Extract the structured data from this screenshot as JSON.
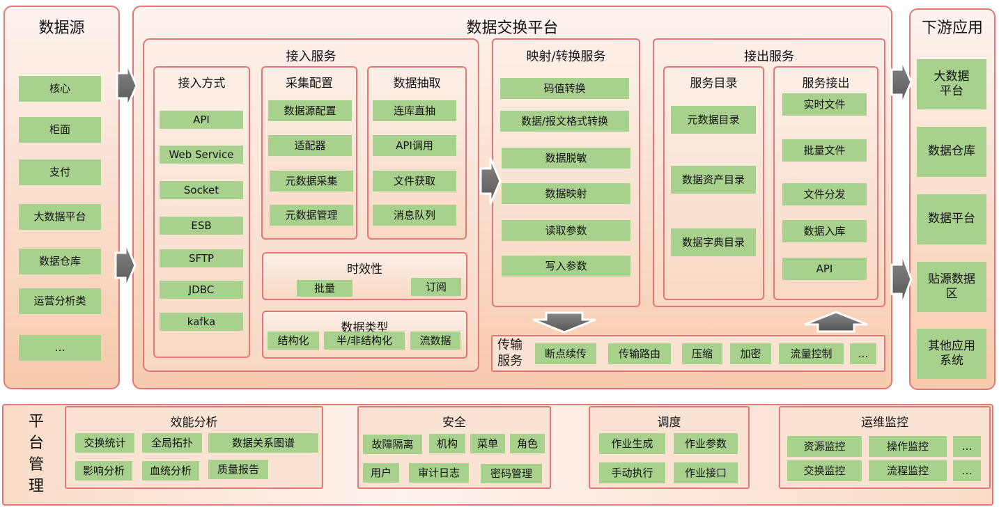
{
  "colors": {
    "border": "#e87575",
    "green": "#a9d18e",
    "arrow": "#666666"
  },
  "source": {
    "title": "数据源",
    "items": [
      "核心",
      "柜面",
      "支付",
      "大数据平台",
      "数据仓库",
      "运营分析类",
      "…"
    ]
  },
  "platform": {
    "title": "数据交换平台",
    "ingest": {
      "title": "接入服务",
      "methods": {
        "title": "接入方式",
        "items": [
          "API",
          "Web Service",
          "Socket",
          "ESB",
          "SFTP",
          "JDBC",
          "kafka"
        ]
      },
      "collect": {
        "title": "采集配置",
        "items": [
          "数据源配置",
          "适配器",
          "元数据采集",
          "元数据管理"
        ]
      },
      "extract": {
        "title": "数据抽取",
        "items": [
          "连库直抽",
          "API调用",
          "文件获取",
          "消息队列"
        ]
      },
      "timeliness": {
        "title": "时效性",
        "items": [
          "批量",
          "订阅"
        ]
      },
      "datatype": {
        "title": "数据类型",
        "items": [
          "结构化",
          "半/非结构化",
          "流数据"
        ]
      }
    },
    "mapping": {
      "title": "映射/转换服务",
      "items": [
        "码值转换",
        "数据/报文格式转换",
        "数据脱敏",
        "数据映射",
        "读取参数",
        "写入参数"
      ]
    },
    "output": {
      "title": "接出服务",
      "catalog": {
        "title": "服务目录",
        "items": [
          "元数据目录",
          "数据资产目录",
          "数据字典目录"
        ]
      },
      "egress": {
        "title": "服务接出",
        "items": [
          "实时文件",
          "批量文件",
          "文件分发",
          "数据入库",
          "API"
        ]
      }
    },
    "transport": {
      "title": "传输服务",
      "items": [
        "断点续传",
        "传输路由",
        "压缩",
        "加密",
        "流量控制",
        "…"
      ]
    }
  },
  "downstream": {
    "title": "下游应用",
    "items": [
      "大数据平台",
      "数据仓库",
      "数据平台",
      "贴源数据区",
      "其他应用系统"
    ]
  },
  "management": {
    "title": "平台管理",
    "perf": {
      "title": "效能分析",
      "items": [
        "交换统计",
        "全局拓扑",
        "数据关系图谱",
        "影响分析",
        "血统分析",
        "质量报告"
      ]
    },
    "security": {
      "title": "安全",
      "items": [
        "故障隔离",
        "机构",
        "菜单",
        "角色",
        "用户",
        "审计日志",
        "密码管理"
      ]
    },
    "schedule": {
      "title": "调度",
      "items": [
        "作业生成",
        "作业参数",
        "手动执行",
        "作业接口"
      ]
    },
    "ops": {
      "title": "运维监控",
      "items": [
        "资源监控",
        "操作监控",
        "…",
        "交换监控",
        "流程监控",
        "…"
      ]
    }
  }
}
